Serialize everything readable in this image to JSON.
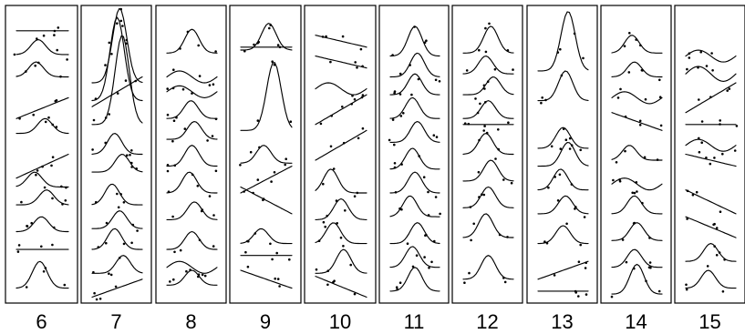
{
  "chart_data": {
    "type": "line",
    "title": "",
    "xlabel": "",
    "ylabel": "",
    "panels": [
      {
        "label": "6",
        "curves": [
          {
            "kind": "flat",
            "level": 0.915
          },
          {
            "kind": "peak",
            "base": 0.835,
            "height": 0.05,
            "center": 0.42
          },
          {
            "kind": "peak",
            "base": 0.76,
            "height": 0.05,
            "center": 0.38
          },
          {
            "kind": "rise",
            "base": 0.62,
            "height": 0.07
          },
          {
            "kind": "peak",
            "base": 0.57,
            "height": 0.05,
            "center": 0.55
          },
          {
            "kind": "rise",
            "base": 0.42,
            "height": 0.08
          },
          {
            "kind": "peak",
            "base": 0.39,
            "height": 0.05,
            "center": 0.35
          },
          {
            "kind": "peak",
            "base": 0.33,
            "height": 0.05,
            "center": 0.58
          },
          {
            "kind": "peak",
            "base": 0.24,
            "height": 0.05,
            "center": 0.48
          },
          {
            "kind": "flat",
            "level": 0.18
          },
          {
            "kind": "peak",
            "base": 0.05,
            "height": 0.09,
            "center": 0.45
          }
        ]
      },
      {
        "label": "7",
        "curves": [
          {
            "kind": "peak",
            "base": 0.74,
            "height": 0.25,
            "center": 0.55
          },
          {
            "kind": "peak",
            "base": 0.68,
            "height": 0.28,
            "center": 0.5
          },
          {
            "kind": "peak",
            "base": 0.6,
            "height": 0.3,
            "center": 0.6
          },
          {
            "kind": "rise",
            "base": 0.66,
            "height": 0.1
          },
          {
            "kind": "peak",
            "base": 0.5,
            "height": 0.07,
            "center": 0.45
          },
          {
            "kind": "peak",
            "base": 0.44,
            "height": 0.06,
            "center": 0.6
          },
          {
            "kind": "peak",
            "base": 0.33,
            "height": 0.07,
            "center": 0.4
          },
          {
            "kind": "peak",
            "base": 0.25,
            "height": 0.06,
            "center": 0.55
          },
          {
            "kind": "peak",
            "base": 0.18,
            "height": 0.07,
            "center": 0.45
          },
          {
            "kind": "peak",
            "base": 0.1,
            "height": 0.06,
            "center": 0.62
          },
          {
            "kind": "rise",
            "base": 0.02,
            "height": 0.06
          }
        ]
      },
      {
        "label": "8",
        "curves": [
          {
            "kind": "peak",
            "base": 0.84,
            "height": 0.08,
            "center": 0.5
          },
          {
            "kind": "wave",
            "base": 0.76,
            "height": 0.04
          },
          {
            "kind": "wave",
            "base": 0.71,
            "height": 0.04
          },
          {
            "kind": "peak",
            "base": 0.62,
            "height": 0.06,
            "center": 0.48
          },
          {
            "kind": "peak",
            "base": 0.55,
            "height": 0.06,
            "center": 0.55
          },
          {
            "kind": "peak",
            "base": 0.46,
            "height": 0.07,
            "center": 0.5
          },
          {
            "kind": "peak",
            "base": 0.37,
            "height": 0.07,
            "center": 0.45
          },
          {
            "kind": "peak",
            "base": 0.28,
            "height": 0.06,
            "center": 0.55
          },
          {
            "kind": "peak",
            "base": 0.18,
            "height": 0.06,
            "center": 0.5
          },
          {
            "kind": "wave",
            "base": 0.12,
            "height": 0.04
          },
          {
            "kind": "peak",
            "base": 0.06,
            "height": 0.05,
            "center": 0.5
          }
        ]
      },
      {
        "label": "9",
        "curves": [
          {
            "kind": "peak",
            "base": 0.85,
            "height": 0.09,
            "center": 0.55
          },
          {
            "kind": "flat",
            "level": 0.86
          },
          {
            "kind": "peak",
            "base": 0.58,
            "height": 0.23,
            "center": 0.65
          },
          {
            "kind": "peak",
            "base": 0.47,
            "height": 0.06,
            "center": 0.45
          },
          {
            "kind": "rise",
            "base": 0.37,
            "height": 0.09
          },
          {
            "kind": "fall",
            "base": 0.3,
            "height": 0.09
          },
          {
            "kind": "peak",
            "base": 0.2,
            "height": 0.05,
            "center": 0.4
          },
          {
            "kind": "flat",
            "level": 0.16
          },
          {
            "kind": "fall",
            "base": 0.05,
            "height": 0.06
          }
        ]
      },
      {
        "label": "10",
        "curves": [
          {
            "kind": "fall",
            "base": 0.86,
            "height": 0.04
          },
          {
            "kind": "fall",
            "base": 0.79,
            "height": 0.04
          },
          {
            "kind": "wave",
            "base": 0.72,
            "height": 0.04
          },
          {
            "kind": "rise",
            "base": 0.6,
            "height": 0.1
          },
          {
            "kind": "rise",
            "base": 0.48,
            "height": 0.1
          },
          {
            "kind": "peak",
            "base": 0.37,
            "height": 0.08,
            "center": 0.3
          },
          {
            "kind": "peak",
            "base": 0.28,
            "height": 0.07,
            "center": 0.5
          },
          {
            "kind": "peak",
            "base": 0.2,
            "height": 0.07,
            "center": 0.35
          },
          {
            "kind": "peak",
            "base": 0.1,
            "height": 0.08,
            "center": 0.55
          },
          {
            "kind": "fall",
            "base": 0.02,
            "height": 0.07
          }
        ]
      },
      {
        "label": "11",
        "curves": [
          {
            "kind": "peak",
            "base": 0.83,
            "height": 0.1,
            "center": 0.5
          },
          {
            "kind": "peak",
            "base": 0.76,
            "height": 0.08,
            "center": 0.55
          },
          {
            "kind": "peak",
            "base": 0.7,
            "height": 0.07,
            "center": 0.5
          },
          {
            "kind": "peak",
            "base": 0.62,
            "height": 0.07,
            "center": 0.45
          },
          {
            "kind": "peak",
            "base": 0.54,
            "height": 0.07,
            "center": 0.55
          },
          {
            "kind": "peak",
            "base": 0.45,
            "height": 0.07,
            "center": 0.45
          },
          {
            "kind": "peak",
            "base": 0.37,
            "height": 0.07,
            "center": 0.5
          },
          {
            "kind": "peak",
            "base": 0.29,
            "height": 0.07,
            "center": 0.4
          },
          {
            "kind": "peak",
            "base": 0.2,
            "height": 0.07,
            "center": 0.55
          },
          {
            "kind": "peak",
            "base": 0.12,
            "height": 0.07,
            "center": 0.45
          },
          {
            "kind": "peak",
            "base": 0.04,
            "height": 0.08,
            "center": 0.5
          }
        ]
      },
      {
        "label": "12",
        "curves": [
          {
            "kind": "peak",
            "base": 0.84,
            "height": 0.09,
            "center": 0.55
          },
          {
            "kind": "peak",
            "base": 0.77,
            "height": 0.06,
            "center": 0.45
          },
          {
            "kind": "peak",
            "base": 0.7,
            "height": 0.06,
            "center": 0.6
          },
          {
            "kind": "peak",
            "base": 0.62,
            "height": 0.06,
            "center": 0.5
          },
          {
            "kind": "flat",
            "level": 0.6
          },
          {
            "kind": "peak",
            "base": 0.5,
            "height": 0.07,
            "center": 0.45
          },
          {
            "kind": "peak",
            "base": 0.41,
            "height": 0.07,
            "center": 0.55
          },
          {
            "kind": "peak",
            "base": 0.32,
            "height": 0.07,
            "center": 0.5
          },
          {
            "kind": "peak",
            "base": 0.22,
            "height": 0.08,
            "center": 0.45
          },
          {
            "kind": "peak",
            "base": 0.08,
            "height": 0.08,
            "center": 0.5
          }
        ]
      },
      {
        "label": "13",
        "curves": [
          {
            "kind": "peak",
            "base": 0.78,
            "height": 0.2,
            "center": 0.6
          },
          {
            "kind": "peak",
            "base": 0.68,
            "height": 0.1,
            "center": 0.55
          },
          {
            "kind": "peak",
            "base": 0.52,
            "height": 0.07,
            "center": 0.5
          },
          {
            "kind": "peak",
            "base": 0.46,
            "height": 0.08,
            "center": 0.6
          },
          {
            "kind": "peak",
            "base": 0.38,
            "height": 0.07,
            "center": 0.45
          },
          {
            "kind": "peak",
            "base": 0.3,
            "height": 0.06,
            "center": 0.55
          },
          {
            "kind": "peak",
            "base": 0.2,
            "height": 0.06,
            "center": 0.5
          },
          {
            "kind": "rise",
            "base": 0.08,
            "height": 0.06
          },
          {
            "kind": "flat",
            "level": 0.04
          }
        ]
      },
      {
        "label": "14",
        "curves": [
          {
            "kind": "peak",
            "base": 0.84,
            "height": 0.06,
            "center": 0.4
          },
          {
            "kind": "peak",
            "base": 0.76,
            "height": 0.05,
            "center": 0.45
          },
          {
            "kind": "wave",
            "base": 0.69,
            "height": 0.04
          },
          {
            "kind": "fall",
            "base": 0.58,
            "height": 0.06
          },
          {
            "kind": "peak",
            "base": 0.48,
            "height": 0.05,
            "center": 0.35
          },
          {
            "kind": "wave",
            "base": 0.4,
            "height": 0.04
          },
          {
            "kind": "peak",
            "base": 0.3,
            "height": 0.06,
            "center": 0.45
          },
          {
            "kind": "peak",
            "base": 0.21,
            "height": 0.06,
            "center": 0.5
          },
          {
            "kind": "peak",
            "base": 0.12,
            "height": 0.06,
            "center": 0.45
          },
          {
            "kind": "peak",
            "base": 0.03,
            "height": 0.1,
            "center": 0.5
          }
        ]
      },
      {
        "label": "15",
        "curves": [
          {
            "kind": "wave",
            "base": 0.83,
            "height": 0.04
          },
          {
            "kind": "wave",
            "base": 0.77,
            "height": 0.05
          },
          {
            "kind": "rise",
            "base": 0.64,
            "height": 0.1
          },
          {
            "kind": "flat",
            "level": 0.6
          },
          {
            "kind": "wave",
            "base": 0.53,
            "height": 0.04
          },
          {
            "kind": "fall",
            "base": 0.46,
            "height": 0.04
          },
          {
            "kind": "fall",
            "base": 0.3,
            "height": 0.08
          },
          {
            "kind": "fall",
            "base": 0.22,
            "height": 0.07
          },
          {
            "kind": "peak",
            "base": 0.14,
            "height": 0.06,
            "center": 0.5
          },
          {
            "kind": "peak",
            "base": 0.05,
            "height": 0.06,
            "center": 0.45
          }
        ]
      }
    ]
  }
}
